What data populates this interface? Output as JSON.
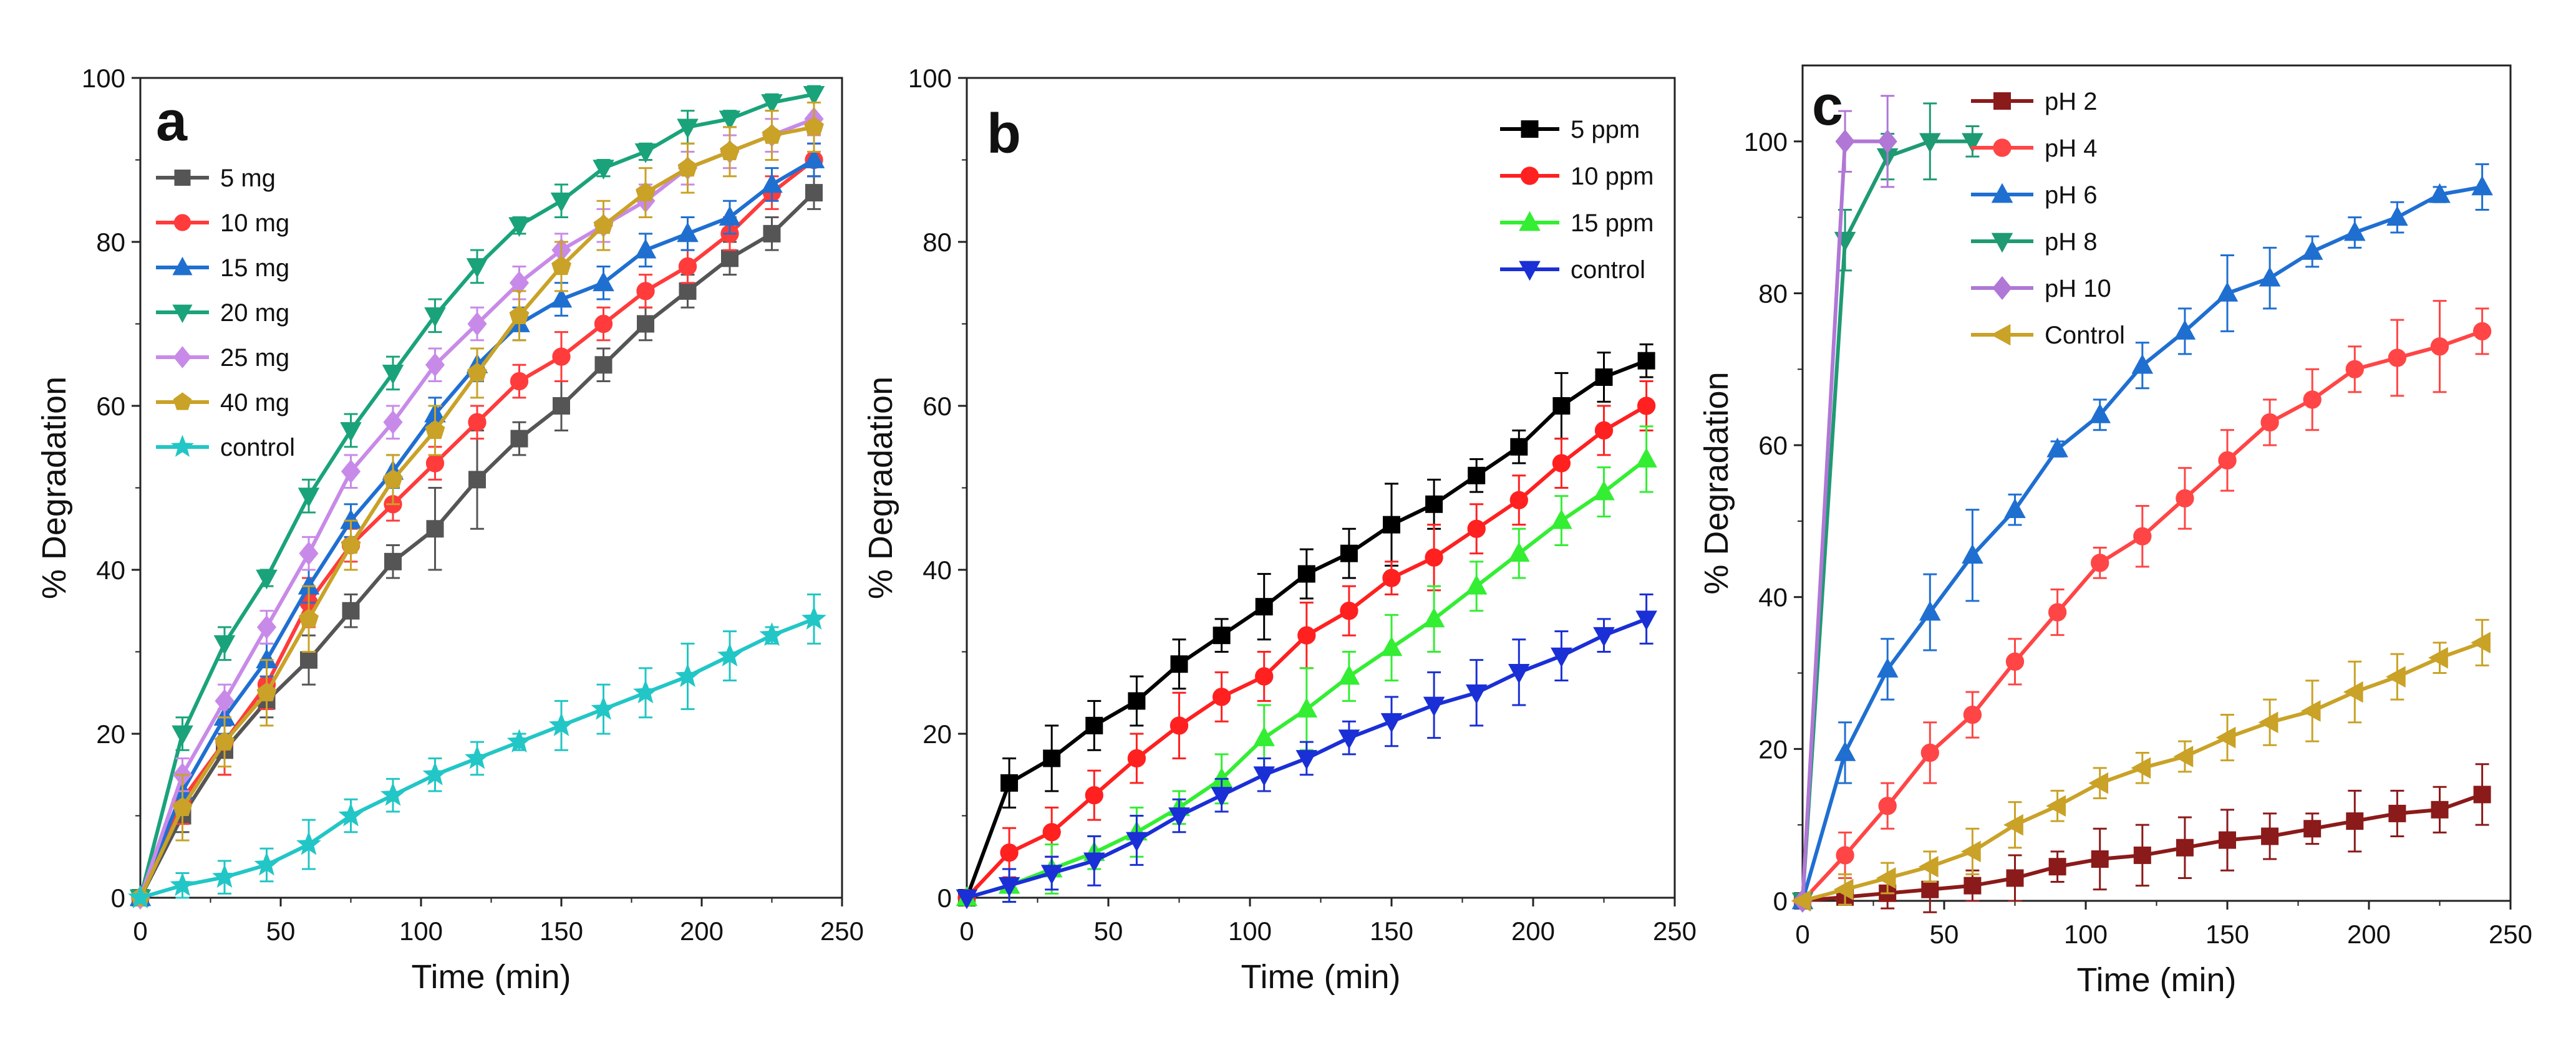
{
  "chart_data": [
    {
      "type": "line",
      "panel": "a",
      "xlabel": "Time (min)",
      "ylabel": "% Degradation",
      "xlim": [
        0,
        250
      ],
      "ylim": [
        0,
        100
      ],
      "xticks": [
        "0",
        "50",
        "100",
        "150",
        "200",
        "250"
      ],
      "yticks": [
        "0",
        "20",
        "40",
        "60",
        "80",
        "100"
      ],
      "legend_position": "top-left",
      "x": [
        0,
        15,
        30,
        45,
        60,
        75,
        90,
        105,
        120,
        135,
        150,
        165,
        180,
        195,
        210,
        225,
        240
      ],
      "series": [
        {
          "name": "5 mg",
          "color": "#555555",
          "marker": "square",
          "values": [
            0,
            10,
            18,
            24,
            29,
            35,
            41,
            45,
            51,
            56,
            60,
            65,
            70,
            74,
            78,
            81,
            86
          ],
          "errors": [
            0,
            2,
            3,
            2,
            3,
            2,
            2,
            5,
            6,
            2,
            3,
            2,
            2,
            2,
            2,
            2,
            2
          ]
        },
        {
          "name": "10 mg",
          "color": "#ff3b3b",
          "marker": "circle",
          "values": [
            0,
            12,
            19,
            26,
            36,
            43,
            48,
            53,
            58,
            63,
            66,
            70,
            74,
            77,
            81,
            86,
            90
          ],
          "errors": [
            0,
            3,
            4,
            3,
            3,
            2,
            2,
            2,
            2,
            2,
            3,
            2,
            2,
            2,
            2,
            2,
            2
          ]
        },
        {
          "name": "15 mg",
          "color": "#1f6fd1",
          "marker": "triangle-up",
          "values": [
            0,
            13,
            22,
            29,
            38,
            46,
            52,
            59,
            65,
            70,
            73,
            75,
            79,
            81,
            83,
            87,
            90
          ],
          "errors": [
            0,
            2,
            2,
            2,
            2,
            2,
            2,
            2,
            2,
            2,
            2,
            2,
            2,
            2,
            2,
            2,
            2
          ]
        },
        {
          "name": "20 mg",
          "color": "#1aa37a",
          "marker": "triangle-down",
          "values": [
            0,
            20,
            31,
            39,
            49,
            57,
            64,
            71,
            77,
            82,
            85,
            89,
            91,
            94,
            95,
            97,
            98
          ],
          "errors": [
            0,
            2,
            2,
            1,
            2,
            2,
            2,
            2,
            2,
            1,
            2,
            1,
            1,
            2,
            1,
            1,
            1
          ]
        },
        {
          "name": "25 mg",
          "color": "#c88ae8",
          "marker": "diamond",
          "values": [
            0,
            15,
            24,
            33,
            42,
            52,
            58,
            65,
            70,
            75,
            79,
            82,
            85,
            89,
            91,
            93,
            95
          ],
          "errors": [
            0,
            2,
            2,
            2,
            2,
            2,
            2,
            2,
            2,
            2,
            2,
            2,
            2,
            2,
            2,
            2,
            2
          ]
        },
        {
          "name": "40 mg",
          "color": "#c9a227",
          "marker": "pentagon",
          "values": [
            0,
            11,
            19,
            25,
            34,
            43,
            51,
            57,
            64,
            71,
            77,
            82,
            86,
            89,
            91,
            93,
            94
          ],
          "errors": [
            0,
            4,
            3,
            4,
            4,
            3,
            3,
            3,
            3,
            3,
            3,
            3,
            3,
            3,
            3,
            3,
            3
          ]
        },
        {
          "name": "control",
          "color": "#22c6c6",
          "marker": "star",
          "values": [
            0,
            1.5,
            2.5,
            4,
            6.5,
            10,
            12.5,
            15,
            17,
            19,
            21,
            23,
            25,
            27,
            29.5,
            32,
            34
          ],
          "errors": [
            0,
            1.5,
            2,
            2,
            3,
            2,
            2,
            2,
            2,
            1,
            3,
            3,
            3,
            4,
            3,
            1,
            3
          ]
        }
      ]
    },
    {
      "type": "line",
      "panel": "b",
      "xlabel": "Time (min)",
      "ylabel": "% Degradation",
      "xlim": [
        0,
        250
      ],
      "ylim": [
        0,
        100
      ],
      "xticks": [
        "0",
        "50",
        "100",
        "150",
        "200",
        "250"
      ],
      "yticks": [
        "0",
        "20",
        "40",
        "60",
        "80",
        "100"
      ],
      "legend_position": "top-right",
      "x": [
        0,
        15,
        30,
        45,
        60,
        75,
        90,
        105,
        120,
        135,
        150,
        165,
        180,
        195,
        210,
        225,
        240
      ],
      "series": [
        {
          "name": "5 ppm",
          "color": "#000000",
          "marker": "square",
          "values": [
            0,
            14,
            17,
            21,
            24,
            28.5,
            32,
            35.5,
            39.5,
            42,
            45.5,
            48,
            51.5,
            55,
            60,
            63.5,
            65.5
          ],
          "errors": [
            0,
            3,
            4,
            3,
            3,
            3,
            2,
            4,
            3,
            3,
            5,
            3,
            2,
            2,
            4,
            3,
            2
          ]
        },
        {
          "name": "10 ppm",
          "color": "#ff2020",
          "marker": "circle",
          "values": [
            0,
            5.5,
            8,
            12.5,
            17,
            21,
            24.5,
            27,
            32,
            35,
            39,
            41.5,
            45,
            48.5,
            53,
            57,
            60
          ],
          "errors": [
            0,
            3,
            3,
            3,
            3,
            4,
            3,
            3,
            4,
            3,
            2,
            4,
            3,
            3,
            3,
            3,
            3
          ]
        },
        {
          "name": "15 ppm",
          "color": "#33ee33",
          "marker": "triangle-up",
          "values": [
            0,
            1.5,
            3.5,
            5.5,
            8,
            11,
            14.5,
            19.5,
            23,
            27,
            30.5,
            34,
            38,
            42,
            46,
            49.5,
            53.5
          ],
          "errors": [
            0,
            2,
            3,
            2,
            3,
            2,
            3,
            4,
            5,
            3,
            4,
            4,
            3,
            3,
            3,
            3,
            4
          ]
        },
        {
          "name": "control",
          "color": "#1a2fd6",
          "marker": "triangle-down",
          "values": [
            0,
            1.5,
            3,
            4.5,
            7,
            10,
            12.5,
            15,
            17,
            19.5,
            21.5,
            23.5,
            25,
            27.5,
            29.5,
            32,
            34
          ],
          "errors": [
            0,
            2,
            2,
            3,
            3,
            2,
            2,
            2,
            2,
            2,
            3,
            4,
            4,
            4,
            3,
            2,
            3
          ]
        }
      ]
    },
    {
      "type": "line",
      "panel": "c",
      "xlabel": "Time (min)",
      "ylabel": "% Degradation",
      "xlim": [
        0,
        250
      ],
      "ylim": [
        0,
        110
      ],
      "xticks": [
        "0",
        "50",
        "100",
        "150",
        "200",
        "250"
      ],
      "yticks": [
        "0",
        "20",
        "40",
        "60",
        "80",
        "100"
      ],
      "legend_position": "top-left",
      "series": [
        {
          "name": "pH 2",
          "color": "#8b1a1a",
          "marker": "square",
          "x": [
            0,
            15,
            30,
            45,
            60,
            75,
            90,
            105,
            120,
            135,
            150,
            165,
            180,
            195,
            210,
            225,
            240
          ],
          "values": [
            0,
            0.5,
            1,
            1.5,
            2,
            3,
            4.5,
            5.5,
            6,
            7,
            8,
            8.5,
            9.5,
            10.5,
            11.5,
            12,
            14
          ],
          "errors": [
            0,
            1,
            2,
            3,
            2,
            3,
            2,
            4,
            4,
            4,
            4,
            3,
            2,
            4,
            3,
            3,
            4
          ]
        },
        {
          "name": "pH 4",
          "color": "#ff4545",
          "marker": "circle",
          "x": [
            0,
            15,
            30,
            45,
            60,
            75,
            90,
            105,
            120,
            135,
            150,
            165,
            180,
            195,
            210,
            225,
            240
          ],
          "values": [
            0,
            6,
            12.5,
            19.5,
            24.5,
            31.5,
            38,
            44.5,
            48,
            53,
            58,
            63,
            66,
            70,
            71.5,
            73,
            75
          ],
          "errors": [
            0,
            3,
            3,
            4,
            3,
            3,
            3,
            2,
            4,
            4,
            4,
            3,
            4,
            3,
            5,
            6,
            3
          ]
        },
        {
          "name": "pH 6",
          "color": "#1f6fd1",
          "marker": "triangle-up",
          "x": [
            0,
            15,
            30,
            45,
            60,
            75,
            90,
            105,
            120,
            135,
            150,
            165,
            180,
            195,
            210,
            225,
            240
          ],
          "values": [
            0,
            19.5,
            30.5,
            38,
            45.5,
            51.5,
            59.5,
            64,
            70.5,
            75,
            80,
            82,
            85.5,
            88,
            90,
            93,
            94
          ],
          "errors": [
            0,
            4,
            4,
            5,
            6,
            2,
            1,
            2,
            3,
            3,
            5,
            4,
            2,
            2,
            2,
            1,
            3
          ]
        },
        {
          "name": "pH 8",
          "color": "#1f9a73",
          "marker": "triangle-down",
          "x": [
            0,
            15,
            30,
            45,
            60
          ],
          "values": [
            0,
            87,
            98,
            100,
            100
          ],
          "errors": [
            0,
            4,
            3,
            5,
            2
          ]
        },
        {
          "name": "pH 10",
          "color": "#b077d6",
          "marker": "diamond",
          "x": [
            0,
            15,
            30
          ],
          "values": [
            0,
            100,
            100
          ],
          "errors": [
            0,
            4,
            6
          ]
        },
        {
          "name": "Control",
          "color": "#c9a227",
          "marker": "triangle-left",
          "x": [
            0,
            15,
            30,
            45,
            60,
            75,
            90,
            105,
            120,
            135,
            150,
            165,
            180,
            195,
            210,
            225,
            240
          ],
          "values": [
            0,
            1.5,
            3,
            4.5,
            6.5,
            10,
            12.5,
            15.5,
            17.5,
            19,
            21.5,
            23.5,
            25,
            27.5,
            29.5,
            32,
            34
          ],
          "errors": [
            0,
            2,
            2,
            2,
            3,
            3,
            2,
            2,
            2,
            2,
            3,
            3,
            4,
            4,
            3,
            2,
            3
          ]
        }
      ]
    }
  ]
}
